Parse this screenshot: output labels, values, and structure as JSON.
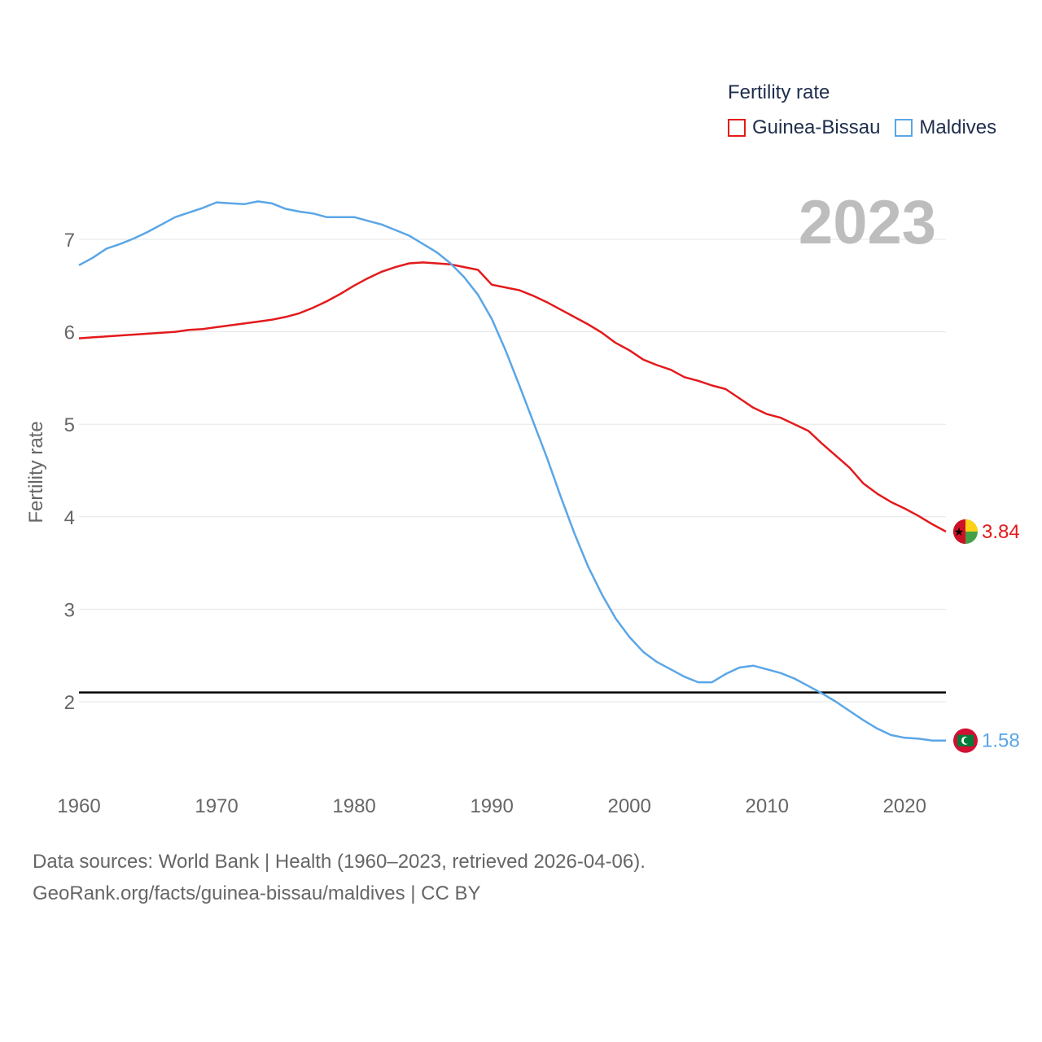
{
  "chart_data": {
    "type": "line",
    "title": "",
    "legend_title": "Fertility rate",
    "xlabel": "",
    "ylabel": "Fertility rate",
    "xlim": [
      1960,
      2023
    ],
    "ylim": [
      1,
      8
    ],
    "x_ticks": [
      1960,
      1970,
      1980,
      1990,
      2000,
      2010,
      2020
    ],
    "y_ticks": [
      2,
      3,
      4,
      5,
      6,
      7
    ],
    "reference_line": 2.1,
    "year_label": "2023",
    "x": [
      1960,
      1961,
      1962,
      1963,
      1964,
      1965,
      1966,
      1967,
      1968,
      1969,
      1970,
      1971,
      1972,
      1973,
      1974,
      1975,
      1976,
      1977,
      1978,
      1979,
      1980,
      1981,
      1982,
      1983,
      1984,
      1985,
      1986,
      1987,
      1988,
      1989,
      1990,
      1991,
      1992,
      1993,
      1994,
      1995,
      1996,
      1997,
      1998,
      1999,
      2000,
      2001,
      2002,
      2003,
      2004,
      2005,
      2006,
      2007,
      2008,
      2009,
      2010,
      2011,
      2012,
      2013,
      2014,
      2015,
      2016,
      2017,
      2018,
      2019,
      2020,
      2021,
      2022,
      2023
    ],
    "series": [
      {
        "name": "Guinea-Bissau",
        "color": "#e31a1c",
        "end_label": "3.84",
        "values": [
          5.93,
          5.94,
          5.95,
          5.96,
          5.97,
          5.98,
          5.99,
          6.0,
          6.02,
          6.03,
          6.05,
          6.07,
          6.09,
          6.11,
          6.13,
          6.16,
          6.2,
          6.26,
          6.33,
          6.41,
          6.5,
          6.58,
          6.65,
          6.7,
          6.74,
          6.75,
          6.74,
          6.73,
          6.7,
          6.67,
          6.51,
          6.48,
          6.45,
          6.39,
          6.32,
          6.24,
          6.16,
          6.08,
          5.99,
          5.88,
          5.8,
          5.7,
          5.64,
          5.59,
          5.51,
          5.47,
          5.42,
          5.38,
          5.28,
          5.18,
          5.11,
          5.07,
          5.0,
          4.93,
          4.79,
          4.66,
          4.53,
          4.36,
          4.25,
          4.16,
          4.09,
          4.01,
          3.92,
          3.84
        ]
      },
      {
        "name": "Maldives",
        "color": "#5aa6e6",
        "end_label": "1.58",
        "values": [
          6.72,
          6.8,
          6.9,
          6.95,
          7.01,
          7.08,
          7.16,
          7.24,
          7.29,
          7.34,
          7.4,
          7.39,
          7.38,
          7.41,
          7.39,
          7.33,
          7.3,
          7.28,
          7.24,
          7.24,
          7.24,
          7.2,
          7.16,
          7.1,
          7.04,
          6.95,
          6.86,
          6.74,
          6.59,
          6.4,
          6.14,
          5.8,
          5.42,
          5.03,
          4.64,
          4.22,
          3.82,
          3.46,
          3.16,
          2.9,
          2.7,
          2.54,
          2.43,
          2.35,
          2.27,
          2.21,
          2.21,
          2.3,
          2.37,
          2.39,
          2.35,
          2.31,
          2.25,
          2.17,
          2.09,
          2.0,
          1.9,
          1.8,
          1.71,
          1.64,
          1.61,
          1.6,
          1.58,
          1.58
        ]
      }
    ]
  },
  "sources": {
    "line1": "Data sources: World Bank | Health (1960–2023, retrieved 2026-04-06).",
    "line2": "GeoRank.org/facts/guinea-bissau/maldives | CC BY"
  }
}
